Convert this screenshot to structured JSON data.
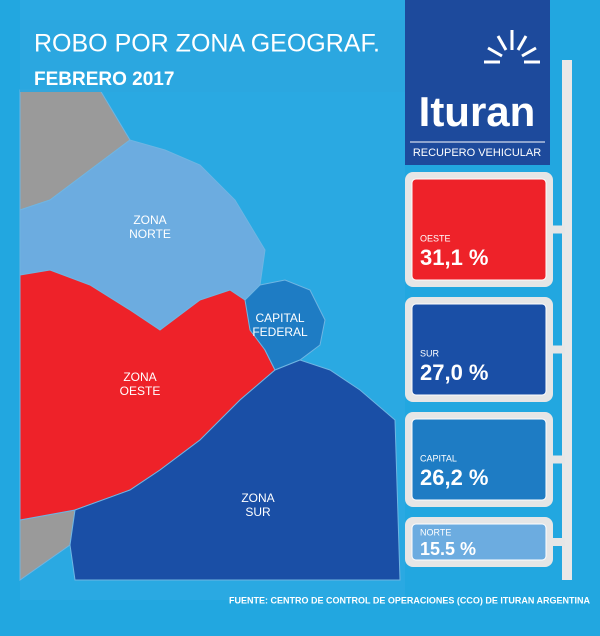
{
  "header": {
    "title": "ROBO POR ZONA GEOGRAF.",
    "subtitle": "FEBRERO 2017"
  },
  "brand": {
    "name": "Ituran",
    "tagline": "RECUPERO VEHICULAR"
  },
  "map": {
    "zones": [
      {
        "lines": [
          "ZONA",
          "NORTE"
        ]
      },
      {
        "lines": [
          "ZONA",
          "OESTE"
        ]
      },
      {
        "lines": [
          "CAPITAL",
          "FEDERAL"
        ]
      },
      {
        "lines": [
          "ZONA",
          "SUR"
        ]
      }
    ]
  },
  "panels": [
    {
      "label": "OESTE",
      "value": "31,1 %"
    },
    {
      "label": "SUR",
      "value": "27,0 %"
    },
    {
      "label": "CAPITAL",
      "value": "26,2 %"
    },
    {
      "label": "NORTE",
      "value": "15.5 %"
    }
  ],
  "footer": {
    "source": "FUENTE: CENTRO DE CONTROL DE OPERACIONES (CCO) DE ITURAN ARGENTINA"
  }
}
